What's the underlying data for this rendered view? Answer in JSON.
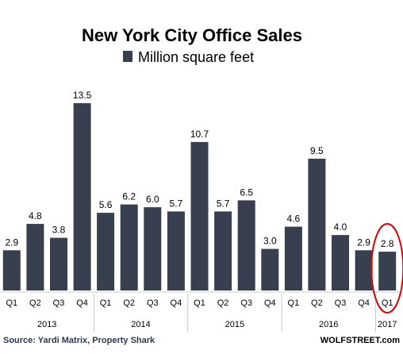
{
  "chart_data": {
    "type": "bar",
    "title": "New York City Office Sales",
    "legend": "Million square feet",
    "categories": [
      "Q1",
      "Q2",
      "Q3",
      "Q4",
      "Q1",
      "Q2",
      "Q3",
      "Q4",
      "Q1",
      "Q2",
      "Q3",
      "Q4",
      "Q1",
      "Q2",
      "Q3",
      "Q4",
      "Q1"
    ],
    "years": [
      {
        "label": "2013",
        "count": 4
      },
      {
        "label": "2014",
        "count": 4
      },
      {
        "label": "2015",
        "count": 4
      },
      {
        "label": "2016",
        "count": 4
      },
      {
        "label": "2017",
        "count": 1
      }
    ],
    "values": [
      2.9,
      4.8,
      3.8,
      13.5,
      5.6,
      6.2,
      6.0,
      5.7,
      10.7,
      5.7,
      6.5,
      3.0,
      4.6,
      9.5,
      4.0,
      2.9,
      2.8
    ],
    "value_labels": [
      "2.9",
      "4.8",
      "3.8",
      "13.5",
      "5.6",
      "6.2",
      "6.0",
      "5.7",
      "10.7",
      "5.7",
      "6.5",
      "3.0",
      "4.6",
      "9.5",
      "4.0",
      "2.9",
      "2.8"
    ],
    "ylim": [
      0,
      13.5
    ],
    "grid": false,
    "legend_position": "top",
    "highlight_index": 16,
    "bar_color": "#38404f",
    "highlight_color": "#e00000"
  },
  "footer": {
    "source": "Source: Yardi Matrix, Property Shark",
    "brand": "WOLFSTREET.com"
  }
}
